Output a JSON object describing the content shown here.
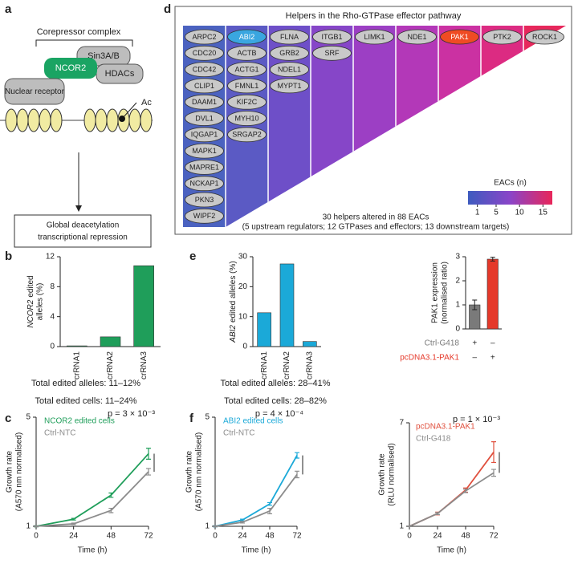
{
  "panel_labels": [
    "a",
    "b",
    "c",
    "d",
    "e",
    "f"
  ],
  "diagram": {
    "complex_label": "Corepressor complex",
    "nodes": [
      "Sin3A/B",
      "NCOR2",
      "HDACs",
      "Nuclear receptor"
    ],
    "mark": "Ac",
    "output": [
      "Global deacetylation",
      "transcriptional repression"
    ]
  },
  "heatmap": {
    "title": "Helpers in the Rho-GTPase effector pathway",
    "columns": [
      {
        "color": "#4b62c0",
        "genes": [
          "ARPC2",
          "CDC20",
          "CDC42",
          "CLIP1",
          "DAAM1",
          "DVL1",
          "IQGAP1",
          "MAPK1",
          "MAPRE1",
          "NCKAP1",
          "PKN3",
          "WIPF2"
        ]
      },
      {
        "color": "#5b5ac4",
        "genes": [
          "ABI2",
          "ACTB",
          "ACTG1",
          "FMNL1",
          "KIF2C",
          "MYH10",
          "SRGAP2"
        ]
      },
      {
        "color": "#6e4fc8",
        "genes": [
          "FLNA",
          "GRB2",
          "NDEL1",
          "MYPT1"
        ]
      },
      {
        "color": "#8646c8",
        "genes": [
          "ITGB1",
          "SRF"
        ]
      },
      {
        "color": "#9c3fc4",
        "genes": [
          "LIMK1"
        ]
      },
      {
        "color": "#b338b8",
        "genes": [
          "NDE1"
        ]
      },
      {
        "color": "#cb31a2",
        "genes": [
          "PAK1"
        ]
      },
      {
        "color": "#dc2b82",
        "genes": [
          "PTK2"
        ]
      },
      {
        "color": "#e7285c",
        "genes": [
          "ROCK1"
        ]
      }
    ],
    "highlight": {
      "ABI2": "#3aa6e0",
      "PAK1": "#ef4b23"
    },
    "colorbar": {
      "label": "EACs (n)",
      "lim": [
        -1,
        17
      ],
      "ticks": [
        1,
        5,
        10,
        15
      ],
      "colors": [
        "#3e5bbf",
        "#8a45c8",
        "#e8265a"
      ]
    },
    "footer": [
      "30 helpers altered in 88 EACs",
      "(5 upstream regulators; 12 GTPases and effectors; 13 downstream targets)"
    ]
  },
  "chart_data": [
    {
      "type": "bar",
      "ylabel_gene": "NCOR2",
      "ylabel": [
        "edited",
        "alleles (%)"
      ],
      "categories": [
        "crRNA1",
        "crRNA2",
        "crRNA3"
      ],
      "values": [
        0.1,
        1.3,
        10.8
      ],
      "color": "#1f9e5a",
      "ylim": [
        0,
        12
      ],
      "yticks": [
        0,
        4,
        8,
        12
      ],
      "notes": [
        "Total edited alleles: 11–12%",
        "Total edited cells: 11–24%"
      ]
    },
    {
      "type": "bar",
      "ylabel_gene": "ABI2",
      "ylabel": [
        "edited alleles (%)"
      ],
      "categories": [
        "crRNA1",
        "crRNA2",
        "crRNA3"
      ],
      "values": [
        11.3,
        27.6,
        1.7
      ],
      "color": "#1ba9d8",
      "ylim": [
        0,
        30
      ],
      "yticks": [
        0,
        10,
        20,
        30
      ],
      "notes": [
        "Total edited alleles: 28–41%",
        "Total edited cells: 28–82%"
      ]
    },
    {
      "type": "bar",
      "ylabel": [
        "PAK1 expression",
        "(normalised ratio)"
      ],
      "categories": [
        "Ctrl-G418",
        "pcDNA3.1-PAK1"
      ],
      "values": [
        1.0,
        2.9
      ],
      "errors": [
        0.2,
        0.08
      ],
      "colors": [
        "#7a7a7a",
        "#e5392a"
      ],
      "ylim": [
        0,
        3
      ],
      "yticks": [
        0,
        1,
        2,
        3
      ],
      "table": [
        [
          "+",
          "–"
        ],
        [
          "–",
          "+"
        ]
      ]
    },
    {
      "type": "line",
      "x": [
        0,
        24,
        48,
        72
      ],
      "xlim": [
        0,
        72
      ],
      "xticks": [
        0,
        24,
        48,
        72
      ],
      "ylim": [
        1,
        5
      ],
      "yticks": [
        1,
        5
      ],
      "xlabel": "Time (h)",
      "ylabel": [
        "Growth rate",
        "(A570 nm normalised)"
      ],
      "annotation": "p = 3 × 10⁻³",
      "series": [
        {
          "name": "NCOR2 edited cells",
          "color": "#1f9e5a",
          "values": [
            1,
            1.26,
            2.14,
            3.66
          ],
          "errors": [
            0.02,
            0.03,
            0.08,
            0.2
          ]
        },
        {
          "name": "Ctrl-NTC",
          "color": "#8c8c8c",
          "values": [
            1,
            1.09,
            1.58,
            3.0
          ],
          "errors": [
            0.02,
            0.03,
            0.08,
            0.12
          ]
        }
      ]
    },
    {
      "type": "line",
      "x": [
        0,
        24,
        48,
        72
      ],
      "xlim": [
        0,
        72
      ],
      "xticks": [
        0,
        24,
        48,
        72
      ],
      "ylim": [
        1,
        5
      ],
      "yticks": [
        1,
        5
      ],
      "xlabel": "Time (h)",
      "ylabel": [
        "Growth rate",
        "(A570 nm normalised)"
      ],
      "annotation": "p = 4 × 10⁻⁴",
      "series": [
        {
          "name": "ABI2 edited cells",
          "color": "#1ba9d8",
          "values": [
            1,
            1.23,
            1.82,
            3.6
          ],
          "errors": [
            0.02,
            0.03,
            0.05,
            0.1
          ]
        },
        {
          "name": "Ctrl-NTC",
          "color": "#8c8c8c",
          "values": [
            1,
            1.15,
            1.56,
            2.9
          ],
          "errors": [
            0.02,
            0.03,
            0.1,
            0.12
          ]
        }
      ]
    },
    {
      "type": "line",
      "x": [
        0,
        24,
        48,
        72
      ],
      "xlim": [
        0,
        72
      ],
      "xticks": [
        0,
        24,
        48,
        72
      ],
      "ylim": [
        1,
        7
      ],
      "yticks": [
        1,
        7
      ],
      "xlabel": "Time (h)",
      "ylabel": [
        "Growth rate",
        "(RLU normalised)"
      ],
      "annotation": "p = 1 × 10⁻³",
      "series": [
        {
          "name": "pcDNA3.1-PAK1",
          "color": "#e0503e",
          "values": [
            1,
            1.74,
            3.1,
            5.3
          ],
          "errors": [
            0.02,
            0.08,
            0.12,
            0.6
          ]
        },
        {
          "name": "Ctrl-G418",
          "color": "#8c8c8c",
          "values": [
            1,
            1.74,
            3.05,
            4.1
          ],
          "errors": [
            0.02,
            0.06,
            0.1,
            0.2
          ]
        }
      ]
    }
  ]
}
